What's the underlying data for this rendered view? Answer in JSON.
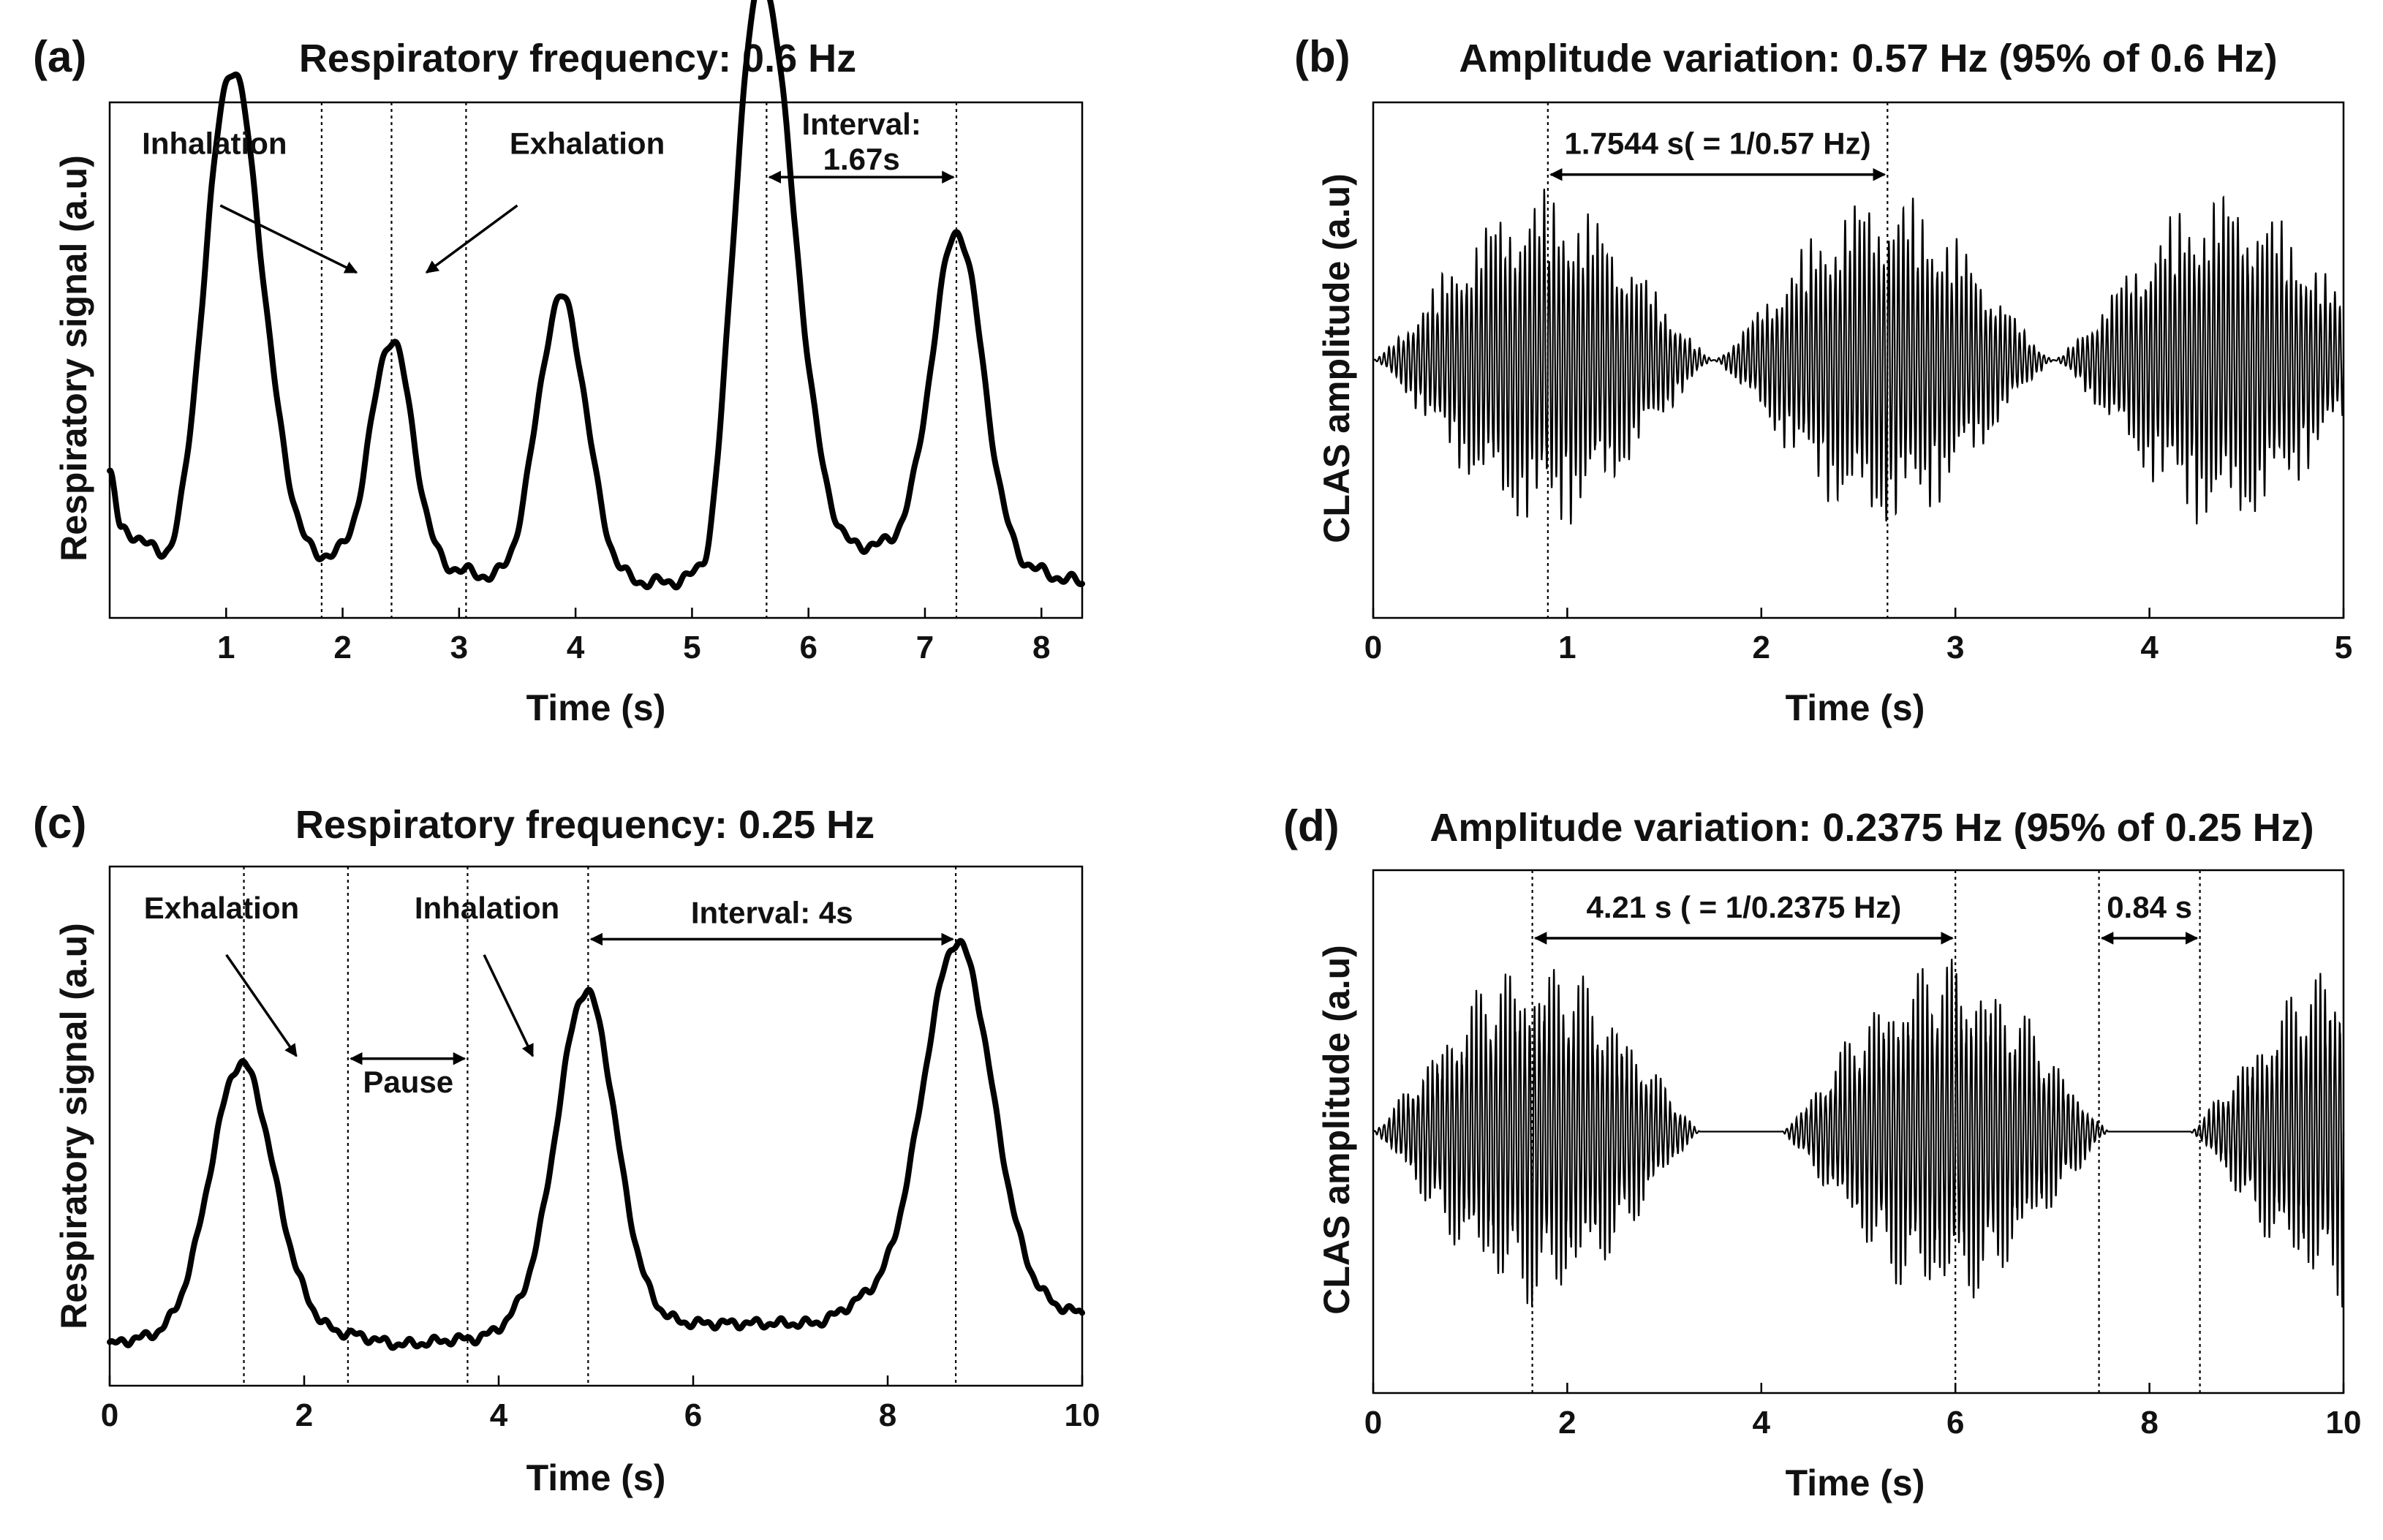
{
  "chart_data": [
    {
      "id": "a",
      "type": "line",
      "panel_label": "(a)",
      "title": "Respiratory frequency: 0.6 Hz",
      "xlabel": "Time (s)",
      "ylabel": "Respiratory signal (a.u)",
      "xlim": [
        0,
        8.35
      ],
      "ylim": [
        0,
        1
      ],
      "xticks": [
        1,
        2,
        3,
        4,
        5,
        6,
        7,
        8
      ],
      "baseline": [
        [
          0,
          0.28
        ],
        [
          0.1,
          0.17
        ],
        [
          0.5,
          0.12
        ],
        [
          1.0,
          0.55
        ],
        [
          1.8,
          0.12
        ],
        [
          2.4,
          0.06
        ],
        [
          3.0,
          0.09
        ],
        [
          3.5,
          0.06
        ],
        [
          5.1,
          0.07
        ],
        [
          5.5,
          0.55
        ],
        [
          6.4,
          0.14
        ],
        [
          7.9,
          0.09
        ],
        [
          8.35,
          0.07
        ]
      ],
      "peaks": [
        {
          "t": 1.07,
          "amp": 0.52,
          "w": 0.3
        },
        {
          "t": 2.42,
          "amp": 0.48,
          "w": 0.26
        },
        {
          "t": 3.88,
          "amp": 0.56,
          "w": 0.3
        },
        {
          "t": 5.63,
          "amp": 0.7,
          "w": 0.32
        },
        {
          "t": 7.28,
          "amp": 0.64,
          "w": 0.31
        }
      ],
      "noise": 0.008,
      "vlines": [
        1.82,
        2.42,
        3.06,
        5.64,
        7.27
      ],
      "annotations": [
        {
          "text": "Inhalation",
          "x": 0.9,
          "y": 0.9
        },
        {
          "text": "Exhalation",
          "x": 4.1,
          "y": 0.9
        }
      ],
      "pointer_arrows": [
        {
          "from": [
            0.95,
            0.8
          ],
          "to": [
            2.12,
            0.67
          ]
        },
        {
          "from": [
            3.5,
            0.8
          ],
          "to": [
            2.72,
            0.67
          ]
        }
      ],
      "interval": {
        "text": "Interval:",
        "value": "1.67s",
        "x1": 5.64,
        "x2": 7.27,
        "y": 0.855
      }
    },
    {
      "id": "b",
      "type": "line",
      "panel_label": "(b)",
      "title": "Amplitude variation: 0.57 Hz (95% of 0.6 Hz)",
      "xlabel": "Time (s)",
      "ylabel": "CLAS amplitude (a.u)",
      "xlim": [
        0,
        5
      ],
      "ylim": [
        -1,
        1
      ],
      "xticks": [
        0,
        1,
        2,
        3,
        4,
        5
      ],
      "envelope_period": 1.7544,
      "envelope_peak_amplitude": 0.67,
      "carrier_hz": 40,
      "vlines": [
        0.9,
        2.65
      ],
      "interval": {
        "text": "1.7544 s( = 1/0.57 Hz)",
        "x1": 0.9,
        "x2": 2.65,
        "y": 0.72
      }
    },
    {
      "id": "c",
      "type": "line",
      "panel_label": "(c)",
      "title": "Respiratory frequency: 0.25 Hz",
      "xlabel": "Time (s)",
      "ylabel": "Respiratory signal (a.u)",
      "xlim": [
        0,
        10
      ],
      "ylim": [
        0,
        1
      ],
      "xticks": [
        0,
        2,
        4,
        6,
        8,
        10
      ],
      "baseline": [
        [
          0,
          0.08
        ],
        [
          0.3,
          0.09
        ],
        [
          1.8,
          0.13
        ],
        [
          2.4,
          0.1
        ],
        [
          3.0,
          0.08
        ],
        [
          3.7,
          0.09
        ],
        [
          4.4,
          0.13
        ],
        [
          5.4,
          0.13
        ],
        [
          6.0,
          0.12
        ],
        [
          7.2,
          0.12
        ],
        [
          7.8,
          0.16
        ],
        [
          9.5,
          0.15
        ],
        [
          10.0,
          0.14
        ]
      ],
      "peaks": [
        {
          "t": 1.35,
          "amp": 0.5,
          "w": 0.45
        },
        {
          "t": 4.9,
          "amp": 0.63,
          "w": 0.42
        },
        {
          "t": 8.72,
          "amp": 0.7,
          "w": 0.5
        }
      ],
      "noise": 0.006,
      "vlines": [
        1.38,
        2.45,
        3.68,
        4.92,
        8.7
      ],
      "annotations": [
        {
          "text": "Exhalation",
          "x": 1.15,
          "y": 0.9
        },
        {
          "text": "Inhalation",
          "x": 3.88,
          "y": 0.9
        },
        {
          "text": "Pause",
          "x": 3.07,
          "y": 0.565
        }
      ],
      "pointer_arrows": [
        {
          "from": [
            1.2,
            0.83
          ],
          "to": [
            1.92,
            0.635
          ]
        },
        {
          "from": [
            3.85,
            0.83
          ],
          "to": [
            4.35,
            0.635
          ]
        }
      ],
      "pause_arrow": {
        "x1": 2.45,
        "x2": 3.68,
        "y": 0.63
      },
      "interval": {
        "text": "Interval: 4s",
        "x1": 4.92,
        "x2": 8.7,
        "y": 0.86
      }
    },
    {
      "id": "d",
      "type": "line",
      "panel_label": "(d)",
      "title": "Amplitude variation: 0.2375 Hz (95% of 0.25 Hz)",
      "xlabel": "Time (s)",
      "ylabel": "CLAS amplitude (a.u)",
      "xlim": [
        0,
        10
      ],
      "ylim": [
        -1,
        1
      ],
      "xticks": [
        0,
        2,
        4,
        6,
        8,
        10
      ],
      "envelope_period": 4.21,
      "active_duration": 3.37,
      "envelope_peak_amplitude": 0.68,
      "carrier_hz": 20,
      "vlines": [
        1.64,
        6.0,
        7.48,
        8.52
      ],
      "interval": {
        "text": "4.21 s ( = 1/0.2375 Hz)",
        "x1": 1.64,
        "x2": 6.0,
        "y": 0.74
      },
      "interval2": {
        "text": "0.84 s",
        "x1": 7.48,
        "x2": 8.52,
        "y": 0.74
      }
    }
  ]
}
